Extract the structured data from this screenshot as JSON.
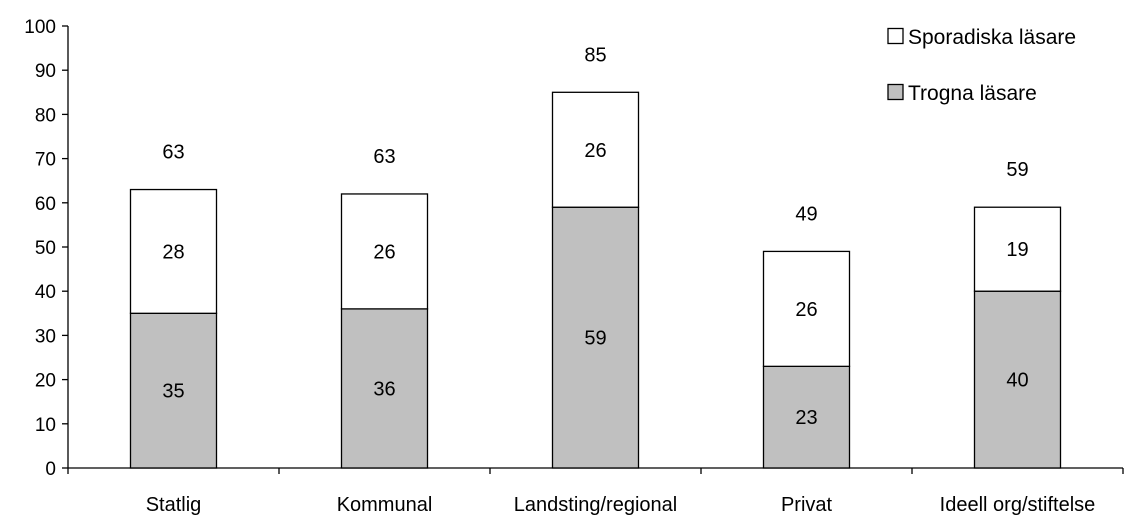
{
  "chart_data": {
    "type": "bar",
    "stacked": true,
    "categories": [
      "Statlig",
      "Kommunal",
      "Landsting/regional",
      "Privat",
      "Ideell org/stiftelse"
    ],
    "series": [
      {
        "name": "Trogna läsare",
        "values": [
          35,
          36,
          59,
          23,
          40
        ],
        "color": "#c0c0c0"
      },
      {
        "name": "Sporadiska läsare",
        "values": [
          28,
          26,
          26,
          26,
          19
        ],
        "color": "#ffffff"
      }
    ],
    "totals": [
      63,
      63,
      85,
      49,
      59
    ],
    "ylim": [
      0,
      100
    ],
    "yticks": [
      0,
      10,
      20,
      30,
      40,
      50,
      60,
      70,
      80,
      90,
      100
    ],
    "title": "",
    "xlabel": "",
    "ylabel": "",
    "grid": false,
    "legend_position": "top-right",
    "legend_order": [
      "Sporadiska läsare",
      "Trogna läsare"
    ]
  }
}
